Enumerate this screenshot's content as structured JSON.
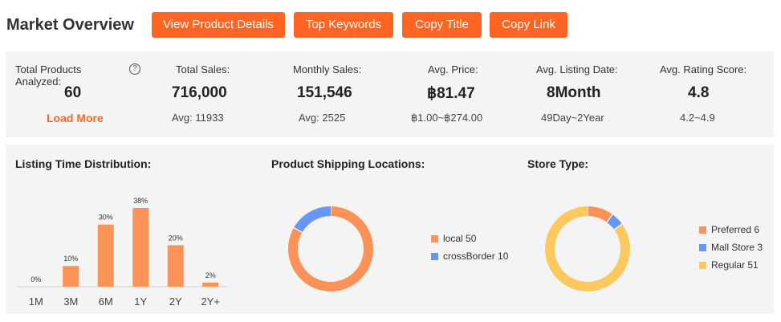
{
  "header": {
    "title": "Market Overview",
    "buttons": {
      "view_product_details": "View Product Details",
      "top_keywords": "Top Keywords",
      "copy_title": "Copy Title",
      "copy_link": "Copy Link"
    }
  },
  "stats": {
    "total_products": {
      "label": "Total Products Analyzed:",
      "value": "60",
      "link": "Load More"
    },
    "total_sales": {
      "label": "Total Sales:",
      "value": "716,000",
      "sub": "Avg: 11933"
    },
    "monthly_sales": {
      "label": "Monthly Sales:",
      "value": "151,546",
      "sub": "Avg: 2525"
    },
    "avg_price": {
      "label": "Avg. Price:",
      "value": "฿81.47",
      "sub": "฿1.00~฿274.00"
    },
    "avg_listing_date": {
      "label": "Avg. Listing Date:",
      "value": "8Month",
      "sub": "49Day~2Year"
    },
    "avg_rating": {
      "label": "Avg. Rating Score:",
      "value": "4.8",
      "sub": "4.2~4.9"
    },
    "help_icon": "?"
  },
  "charts_panel": {
    "listing_title": "Listing Time Distribution:",
    "shipping_title": "Product Shipping Locations:",
    "store_title": "Store Type:"
  },
  "chart_data": [
    {
      "type": "bar",
      "title": "Listing Time Distribution:",
      "categories": [
        "1M",
        "3M",
        "6M",
        "1Y",
        "2Y",
        "2Y+"
      ],
      "values": [
        0,
        10,
        30,
        38,
        20,
        2
      ],
      "labels": [
        "0%",
        "10%",
        "30%",
        "38%",
        "20%",
        "2%"
      ],
      "ylim": [
        0,
        38
      ],
      "color": "#fb9258"
    },
    {
      "type": "pie",
      "title": "Product Shipping Locations:",
      "series": [
        {
          "name": "local",
          "value": 50,
          "color": "#fb9258"
        },
        {
          "name": "crossBorder",
          "value": 10,
          "color": "#6796f7"
        }
      ],
      "legend": [
        "local 50",
        "crossBorder 10"
      ]
    },
    {
      "type": "pie",
      "title": "Store Type:",
      "series": [
        {
          "name": "Preferred",
          "value": 6,
          "color": "#fb9258"
        },
        {
          "name": "Mall Store",
          "value": 3,
          "color": "#6796f7"
        },
        {
          "name": "Regular",
          "value": 51,
          "color": "#fdc95e"
        }
      ],
      "legend": [
        "Preferred 6",
        "Mall Store 3",
        "Regular 51"
      ]
    }
  ]
}
